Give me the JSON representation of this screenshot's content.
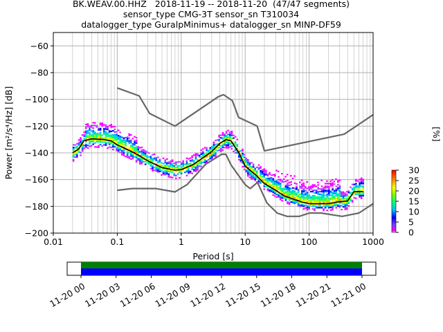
{
  "header": {
    "title_line1": "BK.WEAV.00.HHZ   2018-11-19 -- 2018-11-20  (47/47 segments)",
    "title_line2": "sensor_type CMG-3T sensor_sn T310034",
    "title_line3": "datalogger_type GuralpMinimus+ datalogger_sn MINP-DF59"
  },
  "colorbar": {
    "label": "[%]",
    "ticks": [
      "0",
      "5",
      "10",
      "15",
      "20",
      "25",
      "30"
    ],
    "range": [
      0,
      30
    ]
  },
  "timeline": {
    "ticks": [
      "11-20 00",
      "11-20 03",
      "11-20 06",
      "11-20 09",
      "11-20 12",
      "11-20 15",
      "11-20 18",
      "11-20 21",
      "11-21 00"
    ],
    "colors": {
      "top": "#008000",
      "bottom": "#0000ff"
    }
  },
  "chart_data": {
    "type": "line",
    "xlabel": "Period [s]",
    "ylabel": "Power [m²/s⁴/Hz] [dB]",
    "xscale": "log",
    "xlim": [
      0.01,
      1000
    ],
    "ylim": [
      -200,
      -50
    ],
    "grid": true,
    "xticks": [
      "0.01",
      "0.1",
      "1",
      "10",
      "100",
      "1000"
    ],
    "yticks": [
      "−200",
      "−180",
      "−160",
      "−140",
      "−120",
      "−100",
      "−80",
      "−60"
    ],
    "series": [
      {
        "role": "high-noise-model",
        "color": "#666666",
        "x": [
          0.1,
          0.22,
          0.32,
          0.8,
          3.8,
          4.6,
          6.3,
          7.9,
          15.4,
          20,
          354.8,
          1000
        ],
        "y": [
          -91.5,
          -97.4,
          -110.5,
          -120,
          -98,
          -96.5,
          -101,
          -113.5,
          -120,
          -138.5,
          -126,
          -111.5
        ]
      },
      {
        "role": "low-noise-model",
        "color": "#666666",
        "x": [
          0.1,
          0.17,
          0.4,
          0.8,
          1.24,
          2.4,
          4.3,
          5.0,
          6.0,
          10,
          12,
          15.6,
          21.9,
          31.6,
          45,
          70,
          101,
          154,
          328,
          600,
          1000
        ],
        "y": [
          -168,
          -166.7,
          -166.7,
          -169.2,
          -163.7,
          -148.6,
          -141.1,
          -141.1,
          -149,
          -163.8,
          -166.7,
          -162.1,
          -177.5,
          -185,
          -187.5,
          -187.5,
          -185,
          -185,
          -187.5,
          -185,
          -178
        ]
      },
      {
        "role": "median",
        "color": "#000000",
        "x": [
          0.02,
          0.025,
          0.03,
          0.04,
          0.06,
          0.08,
          0.1,
          0.15,
          0.2,
          0.3,
          0.5,
          0.8,
          1.0,
          1.5,
          2.0,
          3.0,
          4.0,
          5.0,
          6.0,
          8.0,
          10,
          15,
          20,
          30,
          40,
          60,
          80,
          100,
          150,
          200,
          300,
          400,
          500,
          700
        ],
        "y": [
          -140,
          -137,
          -131,
          -129.5,
          -130,
          -131,
          -134,
          -138,
          -141,
          -146,
          -151,
          -153,
          -152.5,
          -149,
          -145,
          -139,
          -133,
          -130,
          -131,
          -140,
          -150,
          -157,
          -163,
          -168,
          -172,
          -175,
          -177,
          -178,
          -178,
          -178,
          -176.5,
          -176,
          -169,
          -169
        ]
      }
    ],
    "histogram_percent_range": [
      0,
      30
    ]
  }
}
